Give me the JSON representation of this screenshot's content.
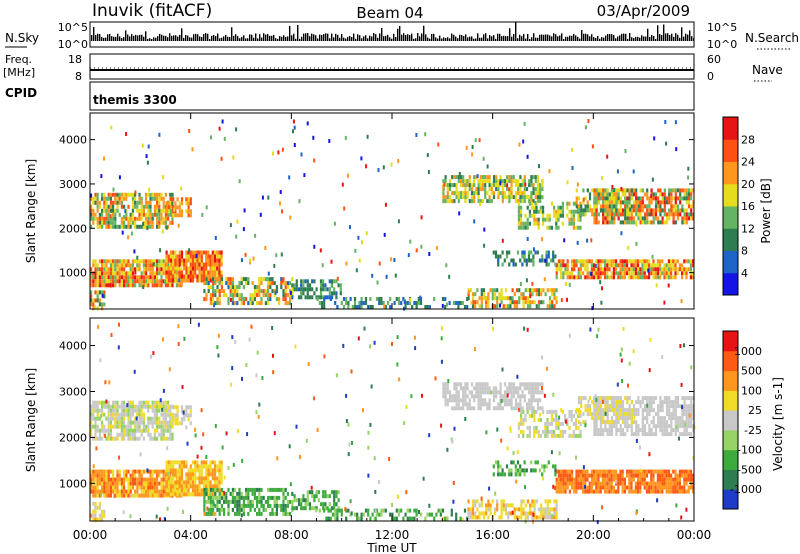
{
  "header": {
    "station": "Inuvik (fitACF)",
    "beam": "Beam 04",
    "date": "03/Apr/2009"
  },
  "top_panels": {
    "nsky_label": "N.Sky",
    "nsky_tick_top": "10^5",
    "nsky_tick_bottom": "10^0",
    "nsearch_label": "N.Search",
    "nsearch_tick_top": "10^5",
    "nsearch_tick_bottom": "10^0",
    "freq_label_line1": "Freq.",
    "freq_label_line2": "[MHz]",
    "freq_tick_top": "18",
    "freq_tick_bottom": "8",
    "nave_label": "Nave",
    "nave_tick_top": "60",
    "nave_tick_bottom": "0",
    "cpid_label": "CPID",
    "cpid_value": "themis 3300"
  },
  "chart_data": [
    {
      "type": "heatmap",
      "panel": "power",
      "ylabel": "Slant Range [km]",
      "ylim": [
        180,
        4600
      ],
      "yticks": [
        "1000",
        "2000",
        "3000",
        "4000"
      ],
      "ytick_values": [
        1000,
        2000,
        3000,
        4000
      ],
      "colorbar_label": "Power [dB]",
      "colorbar_ticks": [
        "4",
        "8",
        "12",
        "16",
        "20",
        "24",
        "28"
      ],
      "colorbar_range": [
        0,
        32
      ],
      "colors": [
        "#1414e6",
        "#1e64c8",
        "#2e7d50",
        "#64b464",
        "#e6dc1e",
        "#ff961e",
        "#ff5014",
        "#e61414"
      ]
    },
    {
      "type": "heatmap",
      "panel": "velocity",
      "ylabel": "Slant Range [km]",
      "ylim": [
        180,
        4600
      ],
      "yticks": [
        "1000",
        "2000",
        "3000",
        "4000"
      ],
      "ytick_values": [
        1000,
        2000,
        3000,
        4000
      ],
      "colorbar_label": "Velocity [m s-1]",
      "colorbar_ticks": [
        "1000",
        "500",
        "100",
        "25",
        "-25",
        "-100",
        "-500",
        "-1000"
      ],
      "colors": [
        "#1e3cc8",
        "#2e7d50",
        "#3caa3c",
        "#96d264",
        "#c8c8c8",
        "#f0dc28",
        "#ff961e",
        "#ff5a14",
        "#e61414"
      ]
    }
  ],
  "time_axis": {
    "label": "Time UT",
    "ticks": [
      "00:00",
      "04:00",
      "08:00",
      "12:00",
      "16:00",
      "20:00",
      "00:00"
    ],
    "tick_hours": [
      0,
      4,
      8,
      12,
      16,
      20,
      24
    ]
  }
}
